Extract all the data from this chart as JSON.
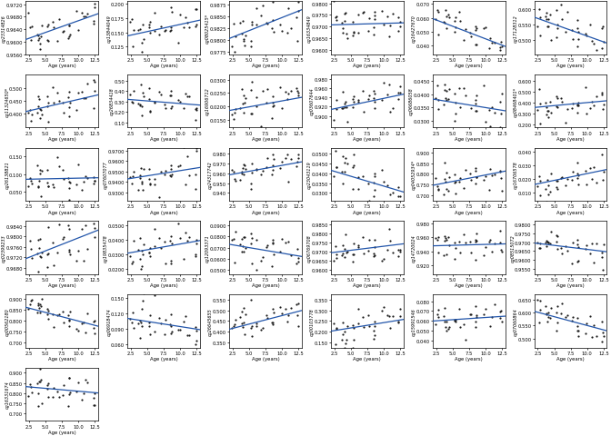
{
  "subplots": [
    {
      "name": "cg23314826",
      "ylim": [
        0.956,
        0.973
      ],
      "yticks": [
        0.956,
        0.96,
        0.964,
        0.968,
        0.972
      ],
      "slope": 0.00075,
      "intercept": 0.9592,
      "noise": 0.003
    },
    {
      "name": "cg13844049",
      "ylim": [
        0.112,
        0.205
      ],
      "yticks": [
        0.125,
        0.15,
        0.175,
        0.2
      ],
      "slope": 0.0025,
      "intercept": 0.139,
      "noise": 0.022
    },
    {
      "name": "cg08025415*",
      "ylim": [
        0.977,
        0.9882
      ],
      "yticks": [
        0.9775,
        0.98,
        0.9825,
        0.985,
        0.9875
      ],
      "slope": 0.00055,
      "intercept": 0.9792,
      "noise": 0.003
    },
    {
      "name": "cg16334849",
      "ylim": [
        0.958,
        0.981
      ],
      "yticks": [
        0.96,
        0.965,
        0.97,
        0.975,
        0.98
      ],
      "slope": 8e-05,
      "intercept": 0.9705,
      "noise": 0.004
    },
    {
      "name": "cg16427670",
      "ylim": [
        0.034,
        0.072
      ],
      "yticks": [
        0.04,
        0.05,
        0.06,
        0.07
      ],
      "slope": -0.0018,
      "intercept": 0.063,
      "noise": 0.007
    },
    {
      "name": "cg17128312",
      "ylim": [
        0.455,
        0.625
      ],
      "yticks": [
        0.5,
        0.55,
        0.6
      ],
      "slope": -0.0075,
      "intercept": 0.588,
      "noise": 0.03
    },
    {
      "name": "cg11324650*",
      "ylim": [
        0.345,
        0.555
      ],
      "yticks": [
        0.4,
        0.45,
        0.5
      ],
      "slope": 0.006,
      "intercept": 0.396,
      "noise": 0.03
    },
    {
      "name": "cg26834418",
      "ylim": [
        0.05,
        0.56
      ],
      "yticks": [
        0.1,
        0.2,
        0.3,
        0.4,
        0.5
      ],
      "slope": -0.005,
      "intercept": 0.33,
      "noise": 0.08
    },
    {
      "name": "cg16906712",
      "ylim": [
        0.012,
        0.032
      ],
      "yticks": [
        0.015,
        0.02,
        0.025,
        0.03
      ],
      "slope": 0.00045,
      "intercept": 0.0175,
      "noise": 0.004
    },
    {
      "name": "cg03607644",
      "ylim": [
        0.875,
        0.99
      ],
      "yticks": [
        0.9,
        0.92,
        0.94,
        0.96,
        0.98
      ],
      "slope": 0.003,
      "intercept": 0.908,
      "noise": 0.018
    },
    {
      "name": "cg06686058",
      "ylim": [
        0.0275,
        0.0475
      ],
      "yticks": [
        0.03,
        0.035,
        0.04,
        0.045
      ],
      "slope": -0.0004,
      "intercept": 0.039,
      "noise": 0.004
    },
    {
      "name": "cg08468401*",
      "ylim": [
        0.175,
        0.655
      ],
      "yticks": [
        0.2,
        0.3,
        0.4,
        0.5,
        0.6
      ],
      "slope": 0.0055,
      "intercept": 0.345,
      "noise": 0.07
    },
    {
      "name": "cg26138821",
      "ylim": [
        0.025,
        0.175
      ],
      "yticks": [
        0.05,
        0.1,
        0.15
      ],
      "slope": 0.0004,
      "intercept": 0.085,
      "noise": 0.025
    },
    {
      "name": "cg07607077",
      "ylim": [
        0.922,
        0.973
      ],
      "yticks": [
        0.93,
        0.94,
        0.95,
        0.96,
        0.97
      ],
      "slope": 0.001,
      "intercept": 0.941,
      "noise": 0.008
    },
    {
      "name": "cg24317742",
      "ylim": [
        0.932,
        0.986
      ],
      "yticks": [
        0.94,
        0.95,
        0.96,
        0.97,
        0.98
      ],
      "slope": 0.0012,
      "intercept": 0.956,
      "noise": 0.008
    },
    {
      "name": "cg23043119",
      "ylim": [
        0.026,
        0.053
      ],
      "yticks": [
        0.03,
        0.035,
        0.04,
        0.045,
        0.05
      ],
      "slope": -0.001,
      "intercept": 0.0435,
      "noise": 0.006
    },
    {
      "name": "cg04052934*",
      "ylim": [
        0.675,
        0.922
      ],
      "yticks": [
        0.7,
        0.75,
        0.8,
        0.85,
        0.9
      ],
      "slope": 0.006,
      "intercept": 0.735,
      "noise": 0.038
    },
    {
      "name": "cg16706578",
      "ylim": [
        0.004,
        0.043
      ],
      "yticks": [
        0.01,
        0.02,
        0.03,
        0.04
      ],
      "slope": 0.001,
      "intercept": 0.014,
      "noise": 0.007
    },
    {
      "name": "cg02399233",
      "ylim": [
        0.9655,
        0.986
      ],
      "yticks": [
        0.968,
        0.972,
        0.976,
        0.98,
        0.984
      ],
      "slope": 0.001,
      "intercept": 0.9695,
      "noise": 0.004
    },
    {
      "name": "cg19835478",
      "ylim": [
        0.016,
        0.053
      ],
      "yticks": [
        0.02,
        0.03,
        0.04,
        0.05
      ],
      "slope": 0.0008,
      "intercept": 0.029,
      "noise": 0.007
    },
    {
      "name": "cg12093371",
      "ylim": [
        0.046,
        0.094
      ],
      "yticks": [
        0.05,
        0.06,
        0.07,
        0.08,
        0.09
      ],
      "slope": -0.001,
      "intercept": 0.075,
      "noise": 0.01
    },
    {
      "name": "cg06769708",
      "ylim": [
        0.9575,
        0.987
      ],
      "yticks": [
        0.96,
        0.965,
        0.97,
        0.975,
        0.98,
        0.985
      ],
      "slope": 0.00045,
      "intercept": 0.9685,
      "noise": 0.004
    },
    {
      "name": "cg14720024",
      "ylim": [
        0.908,
        0.983
      ],
      "yticks": [
        0.92,
        0.94,
        0.96,
        0.98
      ],
      "slope": 0.00025,
      "intercept": 0.9475,
      "noise": 0.012
    },
    {
      "name": "cg08515072",
      "ylim": [
        0.952,
        0.982
      ],
      "yticks": [
        0.955,
        0.96,
        0.965,
        0.97,
        0.975,
        0.98
      ],
      "slope": -0.00045,
      "intercept": 0.9705,
      "noise": 0.005
    },
    {
      "name": "cg00562180",
      "ylim": [
        0.675,
        0.922
      ],
      "yticks": [
        0.7,
        0.75,
        0.8,
        0.85,
        0.9
      ],
      "slope": -0.008,
      "intercept": 0.878,
      "noise": 0.035
    },
    {
      "name": "cg06918474",
      "ylim": [
        0.053,
        0.157
      ],
      "yticks": [
        0.06,
        0.09,
        0.12,
        0.15
      ],
      "slope": -0.002,
      "intercept": 0.114,
      "noise": 0.022
    },
    {
      "name": "cg26645655",
      "ylim": [
        0.325,
        0.575
      ],
      "yticks": [
        0.35,
        0.4,
        0.45,
        0.5,
        0.55
      ],
      "slope": 0.008,
      "intercept": 0.395,
      "noise": 0.038
    },
    {
      "name": "cg00103778",
      "ylim": [
        0.125,
        0.375
      ],
      "yticks": [
        0.15,
        0.2,
        0.25,
        0.3,
        0.35
      ],
      "slope": 0.005,
      "intercept": 0.192,
      "noise": 0.042
    },
    {
      "name": "cg15991546",
      "ylim": [
        0.033,
        0.087
      ],
      "yticks": [
        0.04,
        0.05,
        0.06,
        0.07,
        0.08
      ],
      "slope": 0.00045,
      "intercept": 0.059,
      "noise": 0.01
    },
    {
      "name": "cg07060864",
      "ylim": [
        0.465,
        0.67
      ],
      "yticks": [
        0.5,
        0.55,
        0.6,
        0.65
      ],
      "slope": -0.0068,
      "intercept": 0.618,
      "noise": 0.03
    },
    {
      "name": "cg16331674",
      "ylim": [
        0.665,
        0.925
      ],
      "yticks": [
        0.7,
        0.75,
        0.8,
        0.85,
        0.9
      ],
      "slope": -0.0028,
      "intercept": 0.838,
      "noise": 0.04
    }
  ],
  "nrows": 6,
  "ncols": 6,
  "xlim": [
    2.0,
    13.0
  ],
  "xticks": [
    2.5,
    5.0,
    7.5,
    10.0,
    12.5
  ],
  "xticklabels": [
    "2.5",
    "5.0",
    "7.5",
    "10.0",
    "12.5"
  ],
  "xlabel": "Age (years)",
  "dot_color": "#1a1a1a",
  "line_color": "#2255aa",
  "dot_size": 2.5,
  "bg_color": "#ffffff",
  "n_points": 37,
  "figsize": [
    6.72,
    4.81
  ],
  "dpi": 100
}
